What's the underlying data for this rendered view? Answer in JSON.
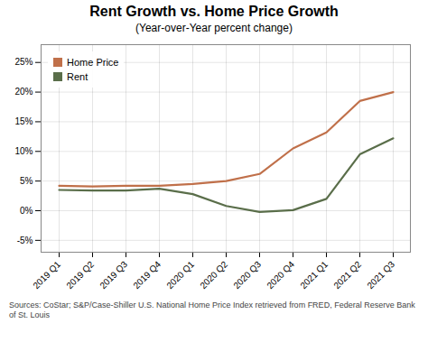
{
  "chart_data": {
    "type": "line",
    "title": "Rent Growth vs. Home Price Growth",
    "subtitle": "(Year-over-Year percent change)",
    "source": "Sources: CoStar; S&P/Case-Shiller U.S. National Home Price Index retrieved from FRED, Federal Reserve Bank of St. Louis",
    "categories": [
      "2019 Q1",
      "2019 Q2",
      "2019 Q3",
      "2019 Q4",
      "2020 Q1",
      "2020 Q2",
      "2020 Q3",
      "2020 Q4",
      "2021 Q1",
      "2021 Q2",
      "2021 Q3"
    ],
    "series": [
      {
        "name": "Home Price",
        "color": "#c0704a",
        "values": [
          4.2,
          4.1,
          4.2,
          4.2,
          4.5,
          5.0,
          6.2,
          10.5,
          13.2,
          18.5,
          20.0
        ]
      },
      {
        "name": "Rent",
        "color": "#5a6e4a",
        "values": [
          3.5,
          3.4,
          3.4,
          3.7,
          2.8,
          0.8,
          -0.2,
          0.1,
          2.0,
          9.5,
          12.2
        ]
      }
    ],
    "ylim": [
      -7,
      28
    ],
    "yticks": [
      {
        "value": -5,
        "label": "-5%"
      },
      {
        "value": 0,
        "label": "0%"
      },
      {
        "value": 5,
        "label": "5%"
      },
      {
        "value": 10,
        "label": "10%"
      },
      {
        "value": 15,
        "label": "15%"
      },
      {
        "value": 20,
        "label": "20%"
      },
      {
        "value": 25,
        "label": "25%"
      }
    ],
    "grid": true,
    "legend": "upper left"
  }
}
